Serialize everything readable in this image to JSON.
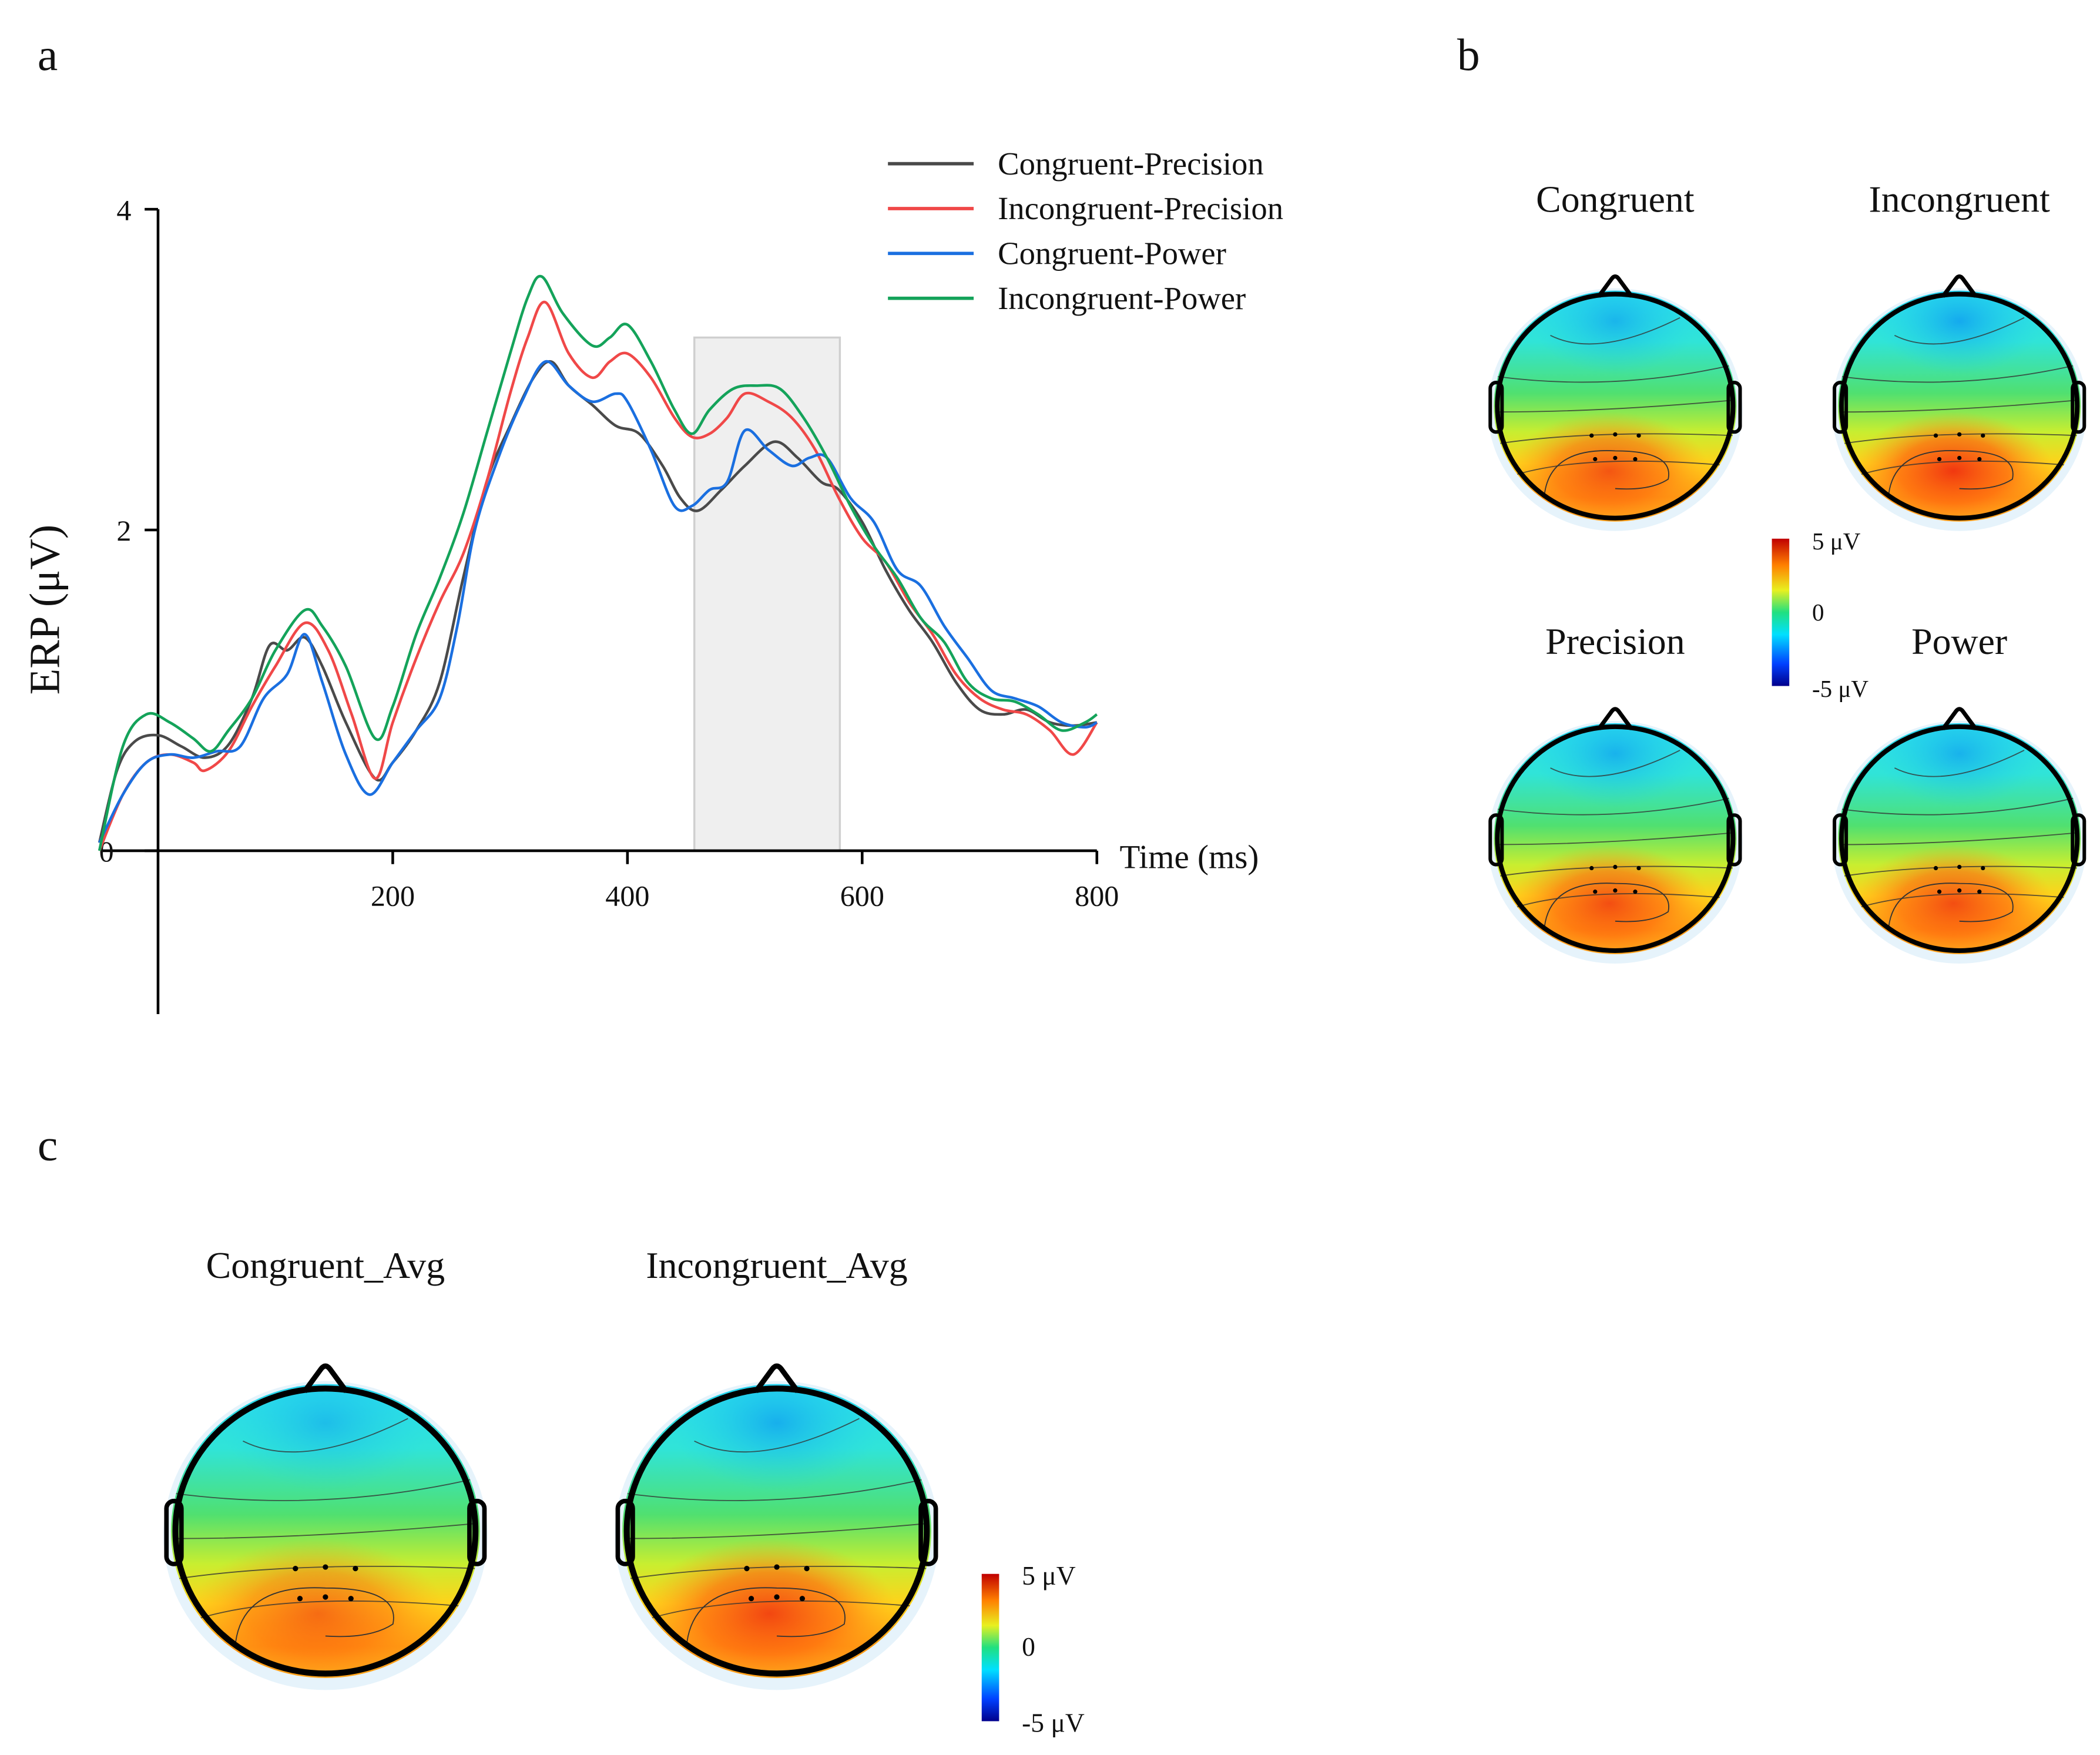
{
  "panel_labels": {
    "a": "a",
    "b": "b",
    "c": "c"
  },
  "chart_data": {
    "type": "line",
    "title": "",
    "xlabel": "Time (ms)",
    "ylabel": "ERP (μV)",
    "xlim": [
      -50,
      800
    ],
    "ylim": [
      -1,
      4
    ],
    "x_ticks": [
      200,
      400,
      600,
      800
    ],
    "x_tick_labels": [
      "200",
      "400",
      "600",
      "800"
    ],
    "y_ticks": [
      0,
      2,
      4
    ],
    "y_tick_labels": [
      "0",
      "2",
      "4"
    ],
    "grid": false,
    "legend_position": "top-right",
    "shaded_window": {
      "start": 457,
      "end": 581,
      "top": 3.2
    },
    "series": [
      {
        "name": "Congruent-Precision",
        "color": "#4a4a4a",
        "x": [
          -50,
          -35,
          -20,
          0,
          20,
          40,
          60,
          80,
          95,
          110,
          125,
          140,
          160,
          185,
          200,
          220,
          240,
          260,
          280,
          300,
          320,
          335,
          350,
          370,
          390,
          410,
          430,
          445,
          460,
          480,
          500,
          525,
          545,
          565,
          580,
          600,
          620,
          640,
          660,
          680,
          700,
          720,
          740,
          760,
          780,
          800
        ],
        "y": [
          0.05,
          0.5,
          0.68,
          0.72,
          0.65,
          0.58,
          0.66,
          0.95,
          1.28,
          1.25,
          1.33,
          1.15,
          0.8,
          0.45,
          0.55,
          0.75,
          1.05,
          1.7,
          2.3,
          2.65,
          2.95,
          3.05,
          2.9,
          2.78,
          2.65,
          2.6,
          2.4,
          2.2,
          2.12,
          2.25,
          2.4,
          2.55,
          2.45,
          2.3,
          2.25,
          2.05,
          1.75,
          1.5,
          1.3,
          1.05,
          0.88,
          0.85,
          0.88,
          0.8,
          0.78,
          0.8
        ]
      },
      {
        "name": "Incongruent-Precision",
        "color": "#f04848",
        "x": [
          -50,
          -30,
          -10,
          10,
          30,
          40,
          60,
          80,
          100,
          125,
          145,
          165,
          185,
          200,
          220,
          240,
          260,
          280,
          300,
          315,
          330,
          350,
          370,
          385,
          400,
          420,
          440,
          455,
          470,
          485,
          500,
          520,
          540,
          560,
          580,
          600,
          620,
          640,
          660,
          680,
          700,
          720,
          740,
          760,
          780,
          800
        ],
        "y": [
          0,
          0.35,
          0.55,
          0.6,
          0.55,
          0.5,
          0.62,
          0.9,
          1.15,
          1.42,
          1.25,
          0.85,
          0.45,
          0.8,
          1.2,
          1.55,
          1.85,
          2.3,
          2.85,
          3.2,
          3.42,
          3.1,
          2.95,
          3.05,
          3.1,
          2.95,
          2.7,
          2.58,
          2.6,
          2.7,
          2.85,
          2.8,
          2.7,
          2.5,
          2.2,
          1.95,
          1.8,
          1.55,
          1.35,
          1.1,
          0.95,
          0.88,
          0.85,
          0.75,
          0.6,
          0.8
        ]
      },
      {
        "name": "Congruent-Power",
        "color": "#1a6fe0",
        "x": [
          -50,
          -30,
          -10,
          10,
          30,
          50,
          70,
          90,
          110,
          125,
          140,
          160,
          180,
          200,
          220,
          240,
          255,
          270,
          290,
          310,
          330,
          350,
          370,
          390,
          400,
          420,
          440,
          455,
          470,
          485,
          500,
          520,
          540,
          555,
          570,
          590,
          610,
          630,
          650,
          670,
          690,
          710,
          730,
          750,
          770,
          790,
          800
        ],
        "y": [
          0.05,
          0.35,
          0.55,
          0.6,
          0.58,
          0.62,
          0.65,
          0.95,
          1.1,
          1.35,
          1.05,
          0.6,
          0.35,
          0.55,
          0.75,
          0.95,
          1.4,
          2.0,
          2.45,
          2.8,
          3.05,
          2.9,
          2.8,
          2.85,
          2.8,
          2.5,
          2.15,
          2.15,
          2.25,
          2.3,
          2.62,
          2.5,
          2.4,
          2.45,
          2.45,
          2.2,
          2.05,
          1.75,
          1.65,
          1.4,
          1.2,
          1.0,
          0.95,
          0.9,
          0.8,
          0.77,
          0.8
        ]
      },
      {
        "name": "Incongruent-Power",
        "color": "#14a35a",
        "x": [
          -50,
          -30,
          -10,
          10,
          30,
          45,
          60,
          80,
          100,
          125,
          140,
          160,
          185,
          200,
          220,
          240,
          260,
          280,
          300,
          315,
          327,
          345,
          370,
          385,
          400,
          420,
          440,
          455,
          470,
          490,
          510,
          530,
          550,
          570,
          590,
          610,
          630,
          650,
          670,
          690,
          710,
          730,
          750,
          770,
          790,
          800
        ],
        "y": [
          0,
          0.65,
          0.85,
          0.8,
          0.7,
          0.62,
          0.75,
          0.95,
          1.25,
          1.5,
          1.4,
          1.15,
          0.7,
          0.9,
          1.35,
          1.7,
          2.1,
          2.6,
          3.1,
          3.45,
          3.58,
          3.35,
          3.15,
          3.2,
          3.28,
          3.05,
          2.75,
          2.6,
          2.75,
          2.88,
          2.9,
          2.88,
          2.7,
          2.45,
          2.15,
          1.9,
          1.7,
          1.45,
          1.3,
          1.05,
          0.95,
          0.93,
          0.85,
          0.75,
          0.8,
          0.85
        ]
      }
    ]
  },
  "panel_b": {
    "maps": [
      {
        "title": "Congruent",
        "intensity": 0.75
      },
      {
        "title": "Incongruent",
        "intensity": 0.95
      },
      {
        "title": "Precision",
        "intensity": 0.8
      },
      {
        "title": "Power",
        "intensity": 0.8
      }
    ],
    "colorbar": {
      "max_label": "5 μV",
      "mid_label": "0",
      "min_label": "-5 μV"
    }
  },
  "panel_c": {
    "maps": [
      {
        "title": "Congruent_Avg",
        "intensity": 0.6
      },
      {
        "title": "Incongruent_Avg",
        "intensity": 0.85
      }
    ],
    "colorbar": {
      "max_label": "5 μV",
      "mid_label": "0",
      "min_label": "-5 μV"
    }
  }
}
